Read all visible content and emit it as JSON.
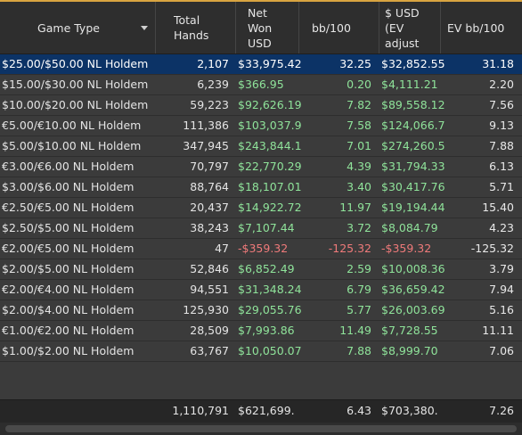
{
  "columns": {
    "game_type": "Game Type",
    "total_hands": "Total\nHands",
    "net_won": "Net\nWon\nUSD",
    "bb100": "bb/100",
    "usd_ev": "$ USD\n(EV\nadjust",
    "ev_bb100": "EV bb/100"
  },
  "rows": [
    {
      "game": "$25.00/$50.00 NL Holdem",
      "hands": "2,107",
      "net": "$33,975.42",
      "bb": "32.25",
      "usd": "$32,852.55",
      "ev": "31.18",
      "negative": false,
      "selected": true
    },
    {
      "game": "$15.00/$30.00 NL Holdem",
      "hands": "6,239",
      "net": "$366.95",
      "bb": "0.20",
      "usd": "$4,111.21",
      "ev": "2.20",
      "negative": false,
      "selected": false
    },
    {
      "game": "$10.00/$20.00 NL Holdem",
      "hands": "59,223",
      "net": "$92,626.19",
      "bb": "7.82",
      "usd": "$89,558.12",
      "ev": "7.56",
      "negative": false,
      "selected": false
    },
    {
      "game": "€5.00/€10.00 NL Holdem",
      "hands": "111,386",
      "net": "$103,037.9",
      "bb": "7.58",
      "usd": "$124,066.7",
      "ev": "9.13",
      "negative": false,
      "selected": false
    },
    {
      "game": "$5.00/$10.00 NL Holdem",
      "hands": "347,945",
      "net": "$243,844.1",
      "bb": "7.01",
      "usd": "$274,260.5",
      "ev": "7.88",
      "negative": false,
      "selected": false
    },
    {
      "game": "€3.00/€6.00 NL Holdem",
      "hands": "70,797",
      "net": "$22,770.29",
      "bb": "4.39",
      "usd": "$31,794.33",
      "ev": "6.13",
      "negative": false,
      "selected": false
    },
    {
      "game": "$3.00/$6.00 NL Holdem",
      "hands": "88,764",
      "net": "$18,107.01",
      "bb": "3.40",
      "usd": "$30,417.76",
      "ev": "5.71",
      "negative": false,
      "selected": false
    },
    {
      "game": "€2.50/€5.00 NL Holdem",
      "hands": "20,437",
      "net": "$14,922.72",
      "bb": "11.97",
      "usd": "$19,194.44",
      "ev": "15.40",
      "negative": false,
      "selected": false
    },
    {
      "game": "$2.50/$5.00 NL Holdem",
      "hands": "38,243",
      "net": "$7,107.44",
      "bb": "3.72",
      "usd": "$8,084.79",
      "ev": "4.23",
      "negative": false,
      "selected": false
    },
    {
      "game": "€2.00/€5.00 NL Holdem",
      "hands": "47",
      "net": "-$359.32",
      "bb": "-125.32",
      "usd": "-$359.32",
      "ev": "-125.32",
      "negative": true,
      "selected": false
    },
    {
      "game": "$2.00/$5.00 NL Holdem",
      "hands": "52,846",
      "net": "$6,852.49",
      "bb": "2.59",
      "usd": "$10,008.36",
      "ev": "3.79",
      "negative": false,
      "selected": false
    },
    {
      "game": "€2.00/€4.00 NL Holdem",
      "hands": "94,551",
      "net": "$31,348.24",
      "bb": "6.79",
      "usd": "$36,659.42",
      "ev": "7.94",
      "negative": false,
      "selected": false
    },
    {
      "game": "$2.00/$4.00 NL Holdem",
      "hands": "125,930",
      "net": "$29,055.76",
      "bb": "5.77",
      "usd": "$26,003.69",
      "ev": "5.16",
      "negative": false,
      "selected": false
    },
    {
      "game": "€1.00/€2.00 NL Holdem",
      "hands": "28,509",
      "net": "$7,993.86",
      "bb": "11.49",
      "usd": "$7,728.55",
      "ev": "11.11",
      "negative": false,
      "selected": false
    },
    {
      "game": "$1.00/$2.00 NL Holdem",
      "hands": "63,767",
      "net": "$10,050.07",
      "bb": "7.88",
      "usd": "$8,999.70",
      "ev": "7.06",
      "negative": false,
      "selected": false
    }
  ],
  "totals": {
    "hands": "1,110,791",
    "net": "$621,699.",
    "bb": "6.43",
    "usd": "$703,380.",
    "ev": "7.26"
  },
  "colors": {
    "positive": "#8fe39a",
    "negative": "#ef7a7a",
    "selected_row": "#0c3366",
    "accent_top": "#d9a441"
  }
}
